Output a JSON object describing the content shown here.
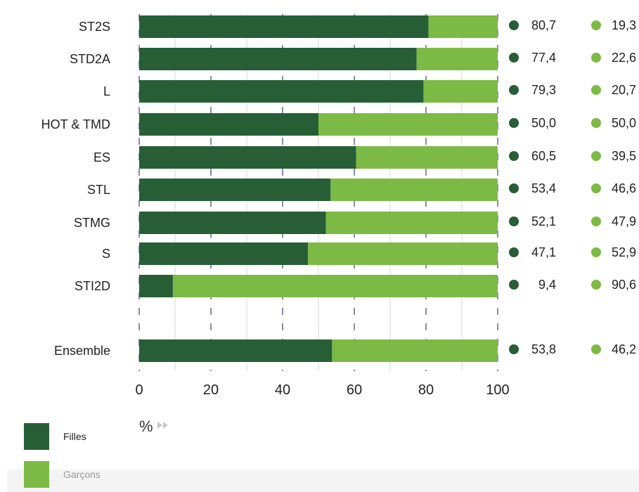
{
  "chart_data": {
    "type": "bar",
    "orientation": "horizontal",
    "stacked": true,
    "categories": [
      "ST2S",
      "STD2A",
      "L",
      "HOT & TMD",
      "ES",
      "STL",
      "STMG",
      "S",
      "STI2D",
      "Ensemble"
    ],
    "series": [
      {
        "name": "Filles",
        "color": "#275e36",
        "values": [
          80.7,
          77.4,
          79.3,
          50.0,
          60.5,
          53.4,
          52.1,
          47.1,
          9.4,
          53.8
        ],
        "labels": [
          "80,7",
          "77,4",
          "79,3",
          "50,0",
          "60,5",
          "53,4",
          "52,1",
          "47,1",
          "9,4",
          "53,8"
        ]
      },
      {
        "name": "Garçons",
        "color": "#7cba45",
        "values": [
          19.3,
          22.6,
          20.7,
          50.0,
          39.5,
          46.6,
          47.9,
          52.9,
          90.6,
          46.2
        ],
        "labels": [
          "19,3",
          "22,6",
          "20,7",
          "50,0",
          "39,5",
          "46,6",
          "47,9",
          "52,9",
          "90,6",
          "46,2"
        ]
      }
    ],
    "xlim": [
      0,
      100
    ],
    "xticks": [
      "0",
      "20",
      "40",
      "60",
      "80",
      "100"
    ],
    "unit_label": "%",
    "grid": true,
    "legend_position": "bottom-left"
  }
}
